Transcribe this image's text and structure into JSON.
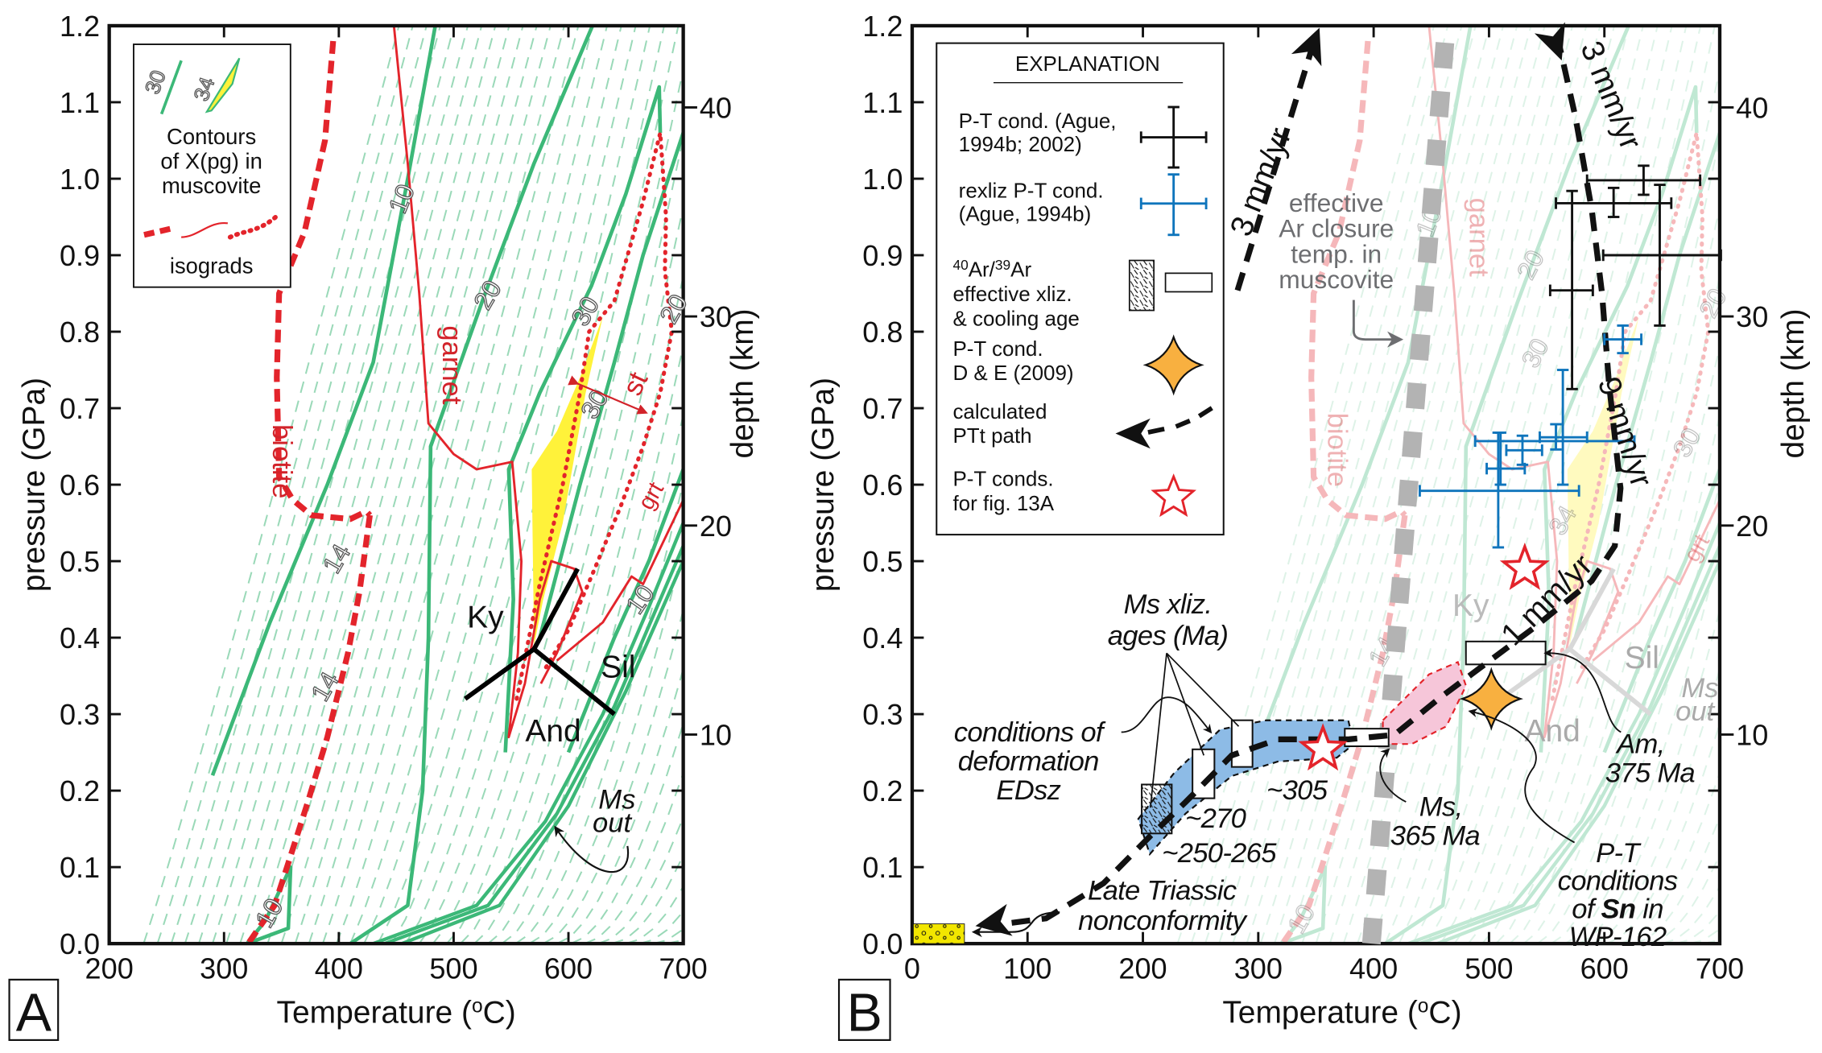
{
  "chart_data": [
    {
      "panel": "A",
      "type": "line",
      "panel_label": "A",
      "xlabel": {
        "prefix": "Temperature (",
        "sup": "o",
        "suffix": "C)"
      },
      "ylabel": "pressure (GPa)",
      "y2label": "depth (km)",
      "xlim": [
        200,
        700
      ],
      "ylim": [
        0,
        1.2
      ],
      "xticks": [
        "200",
        "300",
        "400",
        "500",
        "600",
        "700"
      ],
      "yticks": [
        "0.0",
        "0.1",
        "0.2",
        "0.3",
        "0.4",
        "0.5",
        "0.6",
        "0.7",
        "0.8",
        "0.9",
        "1.0",
        "1.1",
        "1.2"
      ],
      "y2ticks": [
        "10",
        "20",
        "30",
        "40"
      ],
      "grid": false,
      "legend": {
        "position": "top-left",
        "sample_labels": [
          "30",
          "34"
        ],
        "contours_lines": [
          "Contours",
          "of X(pg) in",
          "muscovite"
        ],
        "isograds": "isograds"
      },
      "colors": {
        "contour": "#3cb878",
        "contour_dashed": "#9ad9b8",
        "isograd": "#e3242b",
        "field": "#fff23a",
        "aluminosilicate": "#000000"
      },
      "contours_solid": [
        {
          "label": "10",
          "points": [
            [
              290,
              0.22
            ],
            [
              340,
              0.42
            ],
            [
              390,
              0.6
            ],
            [
              430,
              0.76
            ],
            [
              460,
              1.0
            ],
            [
              484,
              1.2
            ]
          ]
        },
        {
          "label": "20",
          "points": [
            [
              410,
              0.0
            ],
            [
              460,
              0.05
            ],
            [
              473,
              0.2
            ],
            [
              478,
              0.4
            ],
            [
              480,
              0.65
            ],
            [
              525,
              0.84
            ],
            [
              570,
              1.02
            ],
            [
              621,
              1.2
            ]
          ]
        },
        {
          "label": "30",
          "points": [
            [
              545,
              0.25
            ],
            [
              552,
              0.45
            ],
            [
              548,
              0.62
            ],
            [
              575,
              0.72
            ],
            [
              620,
              0.86
            ],
            [
              650,
              0.98
            ],
            [
              679,
              1.12
            ],
            [
              680,
              1.06
            ]
          ]
        },
        {
          "label": "20",
          "points": [
            [
              575,
              0.4
            ],
            [
              610,
              0.6
            ],
            [
              640,
              0.76
            ],
            [
              665,
              0.9
            ],
            [
              700,
              1.06
            ]
          ]
        },
        {
          "label": "10",
          "points": [
            [
              600,
              0.25
            ],
            [
              640,
              0.4
            ],
            [
              670,
              0.5
            ],
            [
              700,
              0.62
            ]
          ]
        },
        {
          "label": "10",
          "points": [
            [
              320,
              0.0
            ],
            [
              356,
              0.02
            ],
            [
              358,
              0.1
            ],
            [
              336,
              0.03
            ],
            [
              320,
              0.0
            ]
          ]
        }
      ],
      "ms_out": [
        [
          [
            430,
            0.0
          ],
          [
            520,
            0.05
          ],
          [
            580,
            0.16
          ],
          [
            630,
            0.3
          ],
          [
            670,
            0.44
          ],
          [
            700,
            0.55
          ]
        ],
        [
          [
            440,
            0.0
          ],
          [
            530,
            0.05
          ],
          [
            590,
            0.17
          ],
          [
            640,
            0.31
          ],
          [
            680,
            0.45
          ],
          [
            700,
            0.52
          ]
        ],
        [
          [
            455,
            0.0
          ],
          [
            540,
            0.05
          ],
          [
            600,
            0.18
          ],
          [
            650,
            0.33
          ],
          [
            700,
            0.5
          ]
        ]
      ],
      "isograds": [
        {
          "name": "biotite",
          "style": "dashed",
          "points": [
            [
              395,
              1.18
            ],
            [
              388,
              1.05
            ],
            [
              370,
              0.93
            ],
            [
              348,
              0.85
            ],
            [
              346,
              0.74
            ],
            [
              348,
              0.61
            ],
            [
              360,
              0.58
            ],
            [
              376,
              0.56
            ],
            [
              410,
              0.555
            ],
            [
              424,
              0.565
            ],
            [
              427,
              0.56
            ]
          ]
        },
        {
          "name": "biotite-lower",
          "style": "dashed",
          "points": [
            [
              427,
              0.56
            ],
            [
              418,
              0.46
            ],
            [
              408,
              0.38
            ],
            [
              390,
              0.27
            ],
            [
              373,
              0.185
            ],
            [
              357,
              0.11
            ],
            [
              344,
              0.05
            ],
            [
              321,
              0.0
            ]
          ]
        },
        {
          "name": "garnet",
          "style": "solid",
          "points": [
            [
              448,
              1.2
            ],
            [
              460,
              1.02
            ],
            [
              470,
              0.85
            ],
            [
              478,
              0.68
            ],
            [
              500,
              0.64
            ],
            [
              520,
              0.62
            ],
            [
              551,
              0.63
            ],
            [
              559,
              0.5
            ],
            [
              556,
              0.38
            ],
            [
              548,
              0.27
            ],
            [
              562,
              0.34
            ],
            [
              575,
              0.45
            ],
            [
              585,
              0.5
            ],
            [
              605,
              0.49
            ],
            [
              612,
              0.46
            ],
            [
              590,
              0.38
            ],
            [
              576,
              0.34
            ]
          ]
        },
        {
          "name": "grt",
          "style": "solid",
          "points": [
            [
              590,
              0.37
            ],
            [
              630,
              0.42
            ],
            [
              655,
              0.48
            ],
            [
              665,
              0.47
            ],
            [
              700,
              0.58
            ]
          ]
        },
        {
          "name": "st",
          "style": "dotted",
          "points": [
            [
              555,
              0.32
            ],
            [
              575,
              0.47
            ],
            [
              595,
              0.6
            ],
            [
              610,
              0.72
            ],
            [
              618,
              0.8
            ],
            [
              640,
              0.84
            ],
            [
              665,
              0.97
            ],
            [
              680,
              1.06
            ],
            [
              685,
              0.95
            ],
            [
              684,
              0.88
            ],
            [
              690,
              0.8
            ],
            [
              680,
              0.72
            ],
            [
              665,
              0.65
            ],
            [
              645,
              0.57
            ],
            [
              620,
              0.48
            ],
            [
              600,
              0.41
            ],
            [
              580,
              0.36
            ]
          ]
        }
      ],
      "isograd_labels": [
        "biotite",
        "garnet",
        "st",
        "grt"
      ],
      "pg34_field": [
        [
          568,
          0.62
        ],
        [
          590,
          0.67
        ],
        [
          610,
          0.74
        ],
        [
          630,
          0.82
        ],
        [
          615,
          0.72
        ],
        [
          595,
          0.55
        ],
        [
          578,
          0.45
        ],
        [
          570,
          0.39
        ]
      ],
      "aluminosilicate": {
        "triple": [
          570,
          0.385
        ],
        "ky_sil": [
          608,
          0.49
        ],
        "and_ky": [
          510,
          0.32
        ],
        "and_sil": [
          640,
          0.3
        ],
        "labels": [
          "Ky",
          "Sil",
          "And"
        ]
      },
      "contour_labels": [
        "10",
        "20",
        "30",
        "30",
        "20",
        "10",
        "14",
        "14",
        "10"
      ],
      "ms_out_label": [
        "Ms",
        "out"
      ]
    },
    {
      "panel": "B",
      "type": "line",
      "panel_label": "B",
      "xlabel": {
        "prefix": "Temperature (",
        "sup": "o",
        "suffix": "C)"
      },
      "ylabel": "pressure (GPa)",
      "y2label": "depth (km)",
      "xlim": [
        0,
        700
      ],
      "ylim": [
        0,
        1.2
      ],
      "xticks": [
        "0",
        "100",
        "200",
        "300",
        "400",
        "500",
        "600",
        "700"
      ],
      "yticks": [
        "0.0",
        "0.1",
        "0.2",
        "0.3",
        "0.4",
        "0.5",
        "0.6",
        "0.7",
        "0.8",
        "0.9",
        "1.0",
        "1.1",
        "1.2"
      ],
      "y2ticks": [
        "10",
        "20",
        "30",
        "40"
      ],
      "grid": false,
      "legend": {
        "position": "top-left",
        "title": "EXPLANATION",
        "items": [
          {
            "lines": [
              "P-T cond. (Ague,",
              "1994b; 2002)"
            ],
            "symbol": "black-error-cross"
          },
          {
            "lines": [
              "rexliz P-T cond.",
              "(Ague, 1994b)"
            ],
            "symbol": "blue-error-cross"
          },
          {
            "lines_parts": [
              [
                "40",
                "Ar/",
                "39",
                "Ar"
              ]
            ],
            "lines": [
              "effective xliz.",
              "& cooling age"
            ],
            "symbol": "hatched-box-and-open-box"
          },
          {
            "lines": [
              "P-T cond.",
              "D & E (2009)"
            ],
            "symbol": "orange-four-point-star"
          },
          {
            "lines": [
              "calculated",
              "PTt path"
            ],
            "symbol": "dashed-arrow"
          },
          {
            "lines": [
              "P-T conds.",
              "for fig. 13A"
            ],
            "symbol": "red-open-star"
          }
        ]
      },
      "colors": {
        "pt_black": "#111111",
        "pt_blue": "#0f75bc",
        "star_red": "#e3242b",
        "orange": "#f8b040",
        "edsz_region": "#8dbbe6",
        "pink_region": "#f6c6d9",
        "closure": "#b3b3b3",
        "nonconformity": "#f2e600"
      },
      "pt_black": [
        {
          "T": 634,
          "P": 0.998,
          "Tmin": 585,
          "Tmax": 683,
          "Pmin": 0.979,
          "Pmax": 1.017
        },
        {
          "T": 608,
          "P": 0.968,
          "Tmin": 558,
          "Tmax": 658,
          "Pmin": 0.95,
          "Pmax": 0.988
        },
        {
          "T": 648,
          "P": 0.9,
          "Tmin": 599,
          "Tmax": 701,
          "Pmin": 0.808,
          "Pmax": 0.992
        },
        {
          "T": 572,
          "P": 0.854,
          "Tmin": 553,
          "Tmax": 590,
          "Pmin": 0.725,
          "Pmax": 0.984
        }
      ],
      "pt_blue": [
        {
          "T": 616,
          "P": 0.79,
          "Tmin": 600,
          "Tmax": 632,
          "Pmin": 0.772,
          "Pmax": 0.808
        },
        {
          "T": 558,
          "P": 0.662,
          "Tmin": 544,
          "Tmax": 585,
          "Pmin": 0.646,
          "Pmax": 0.679
        },
        {
          "T": 564,
          "P": 0.657,
          "Tmin": 488,
          "Tmax": 626,
          "Pmin": 0.6,
          "Pmax": 0.75
        },
        {
          "T": 529,
          "P": 0.645,
          "Tmin": 515,
          "Tmax": 546,
          "Pmin": 0.626,
          "Pmax": 0.664
        },
        {
          "T": 510,
          "P": 0.621,
          "Tmin": 498,
          "Tmax": 531,
          "Pmin": 0.6,
          "Pmax": 0.668
        },
        {
          "T": 508,
          "P": 0.592,
          "Tmin": 440,
          "Tmax": 578,
          "Pmin": 0.518,
          "Pmax": 0.668
        }
      ],
      "red_stars": [
        [
          531,
          0.49
        ],
        [
          356,
          0.254
        ]
      ],
      "orange_star": [
        502,
        0.32
      ],
      "ptt_path": [
        [
          559,
          1.188
        ],
        [
          575,
          1.08
        ],
        [
          589,
          0.96
        ],
        [
          598,
          0.85
        ],
        [
          604,
          0.732
        ],
        [
          614,
          0.595
        ],
        [
          609,
          0.52
        ],
        [
          589,
          0.474
        ],
        [
          539,
          0.413
        ],
        [
          499,
          0.368
        ],
        [
          458,
          0.322
        ],
        [
          418,
          0.273
        ],
        [
          378,
          0.267
        ],
        [
          317,
          0.267
        ],
        [
          277,
          0.246
        ],
        [
          237,
          0.185
        ],
        [
          206,
          0.14
        ],
        [
          166,
          0.079
        ],
        [
          116,
          0.033
        ],
        [
          80,
          0.026
        ]
      ],
      "ptt_rising": [
        [
          282,
          0.854
        ],
        [
          347,
          1.173
        ]
      ],
      "rates": [
        "3 mm/yr",
        "3 mm/yr",
        "9 mm/yr",
        "1 mm/yr"
      ],
      "closure_line": [
        [
          398,
          0.0
        ],
        [
          463,
          1.2
        ]
      ],
      "closure_label": [
        "effective",
        "Ar closure",
        "temp. in",
        "muscovite"
      ],
      "edsz_region": [
        [
          196,
          0.163
        ],
        [
          227,
          0.223
        ],
        [
          267,
          0.28
        ],
        [
          307,
          0.292
        ],
        [
          378,
          0.292
        ],
        [
          383,
          0.261
        ],
        [
          368,
          0.243
        ],
        [
          317,
          0.238
        ],
        [
          277,
          0.219
        ],
        [
          237,
          0.17
        ],
        [
          206,
          0.117
        ]
      ],
      "sn_region": [
        [
          408,
          0.292
        ],
        [
          448,
          0.352
        ],
        [
          473,
          0.368
        ],
        [
          480,
          0.337
        ],
        [
          463,
          0.284
        ],
        [
          433,
          0.261
        ],
        [
          408,
          0.261
        ]
      ],
      "age_boxes": [
        {
          "label": "~250-265",
          "Tmin": 199,
          "Tmax": 225,
          "Pmin": 0.144,
          "Pmax": 0.208,
          "hatched": true
        },
        {
          "label": "~270",
          "Tmin": 243,
          "Tmax": 262,
          "Pmin": 0.19,
          "Pmax": 0.254
        },
        {
          "label": "~305",
          "Tmin": 277,
          "Tmax": 295,
          "Pmin": 0.231,
          "Pmax": 0.292
        },
        {
          "label": "Ms, 365 Ma",
          "Tmin": 375,
          "Tmax": 413,
          "Pmin": 0.258,
          "Pmax": 0.281
        },
        {
          "label": "Am, 375 Ma",
          "Tmin": 480,
          "Tmax": 549,
          "Pmin": 0.365,
          "Pmax": 0.395
        }
      ],
      "annotations": {
        "ms_xliz": [
          "Ms xliz.",
          "ages (Ma)"
        ],
        "edsz": [
          "conditions of",
          "deformation",
          "EDsz"
        ],
        "age_305": "~305",
        "age_270": "~270",
        "age_250": "~250-265",
        "ms365": [
          "Ms,",
          "365 Ma"
        ],
        "am375": [
          "Am,",
          "375 Ma"
        ],
        "sn": {
          "l1": "P-T",
          "l2": "conditions",
          "l3_pre": "of ",
          "l3_bold": "Sn",
          "l3_post": " in",
          "l4": "WP-162"
        },
        "triassic": [
          "Late Triassic",
          "nonconformity"
        ],
        "faded_labels": [
          "biotite",
          "garnet",
          "grt",
          "Ky",
          "Sil",
          "And",
          "Ms",
          "out",
          "10",
          "20",
          "30",
          "20",
          "14",
          "10",
          "34",
          "30"
        ]
      }
    }
  ]
}
